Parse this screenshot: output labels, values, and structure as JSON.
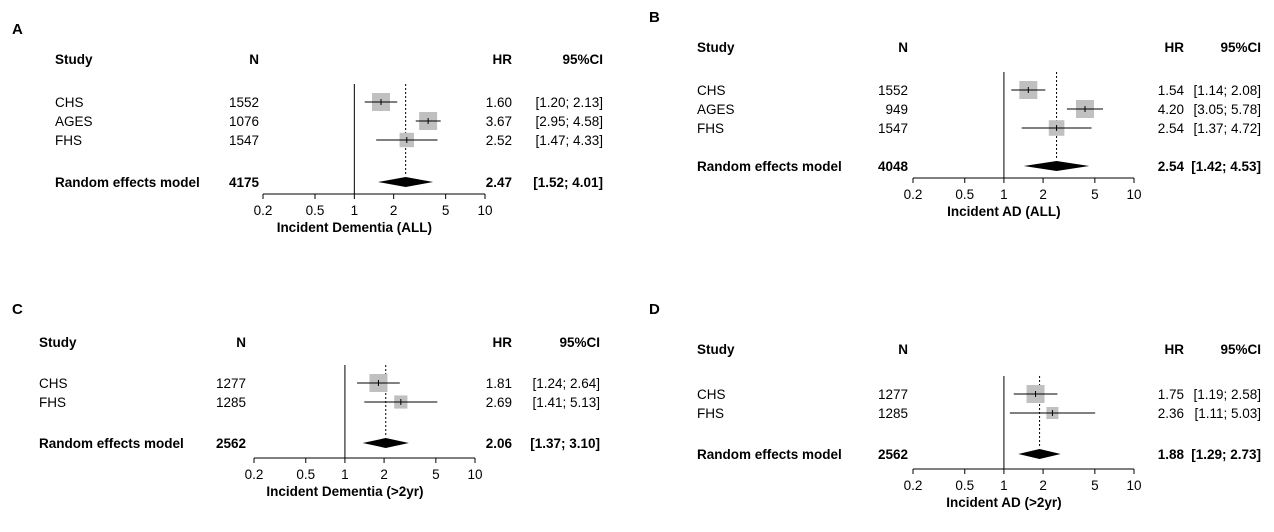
{
  "chart_data": [
    {
      "type": "forest",
      "panel_label": "A",
      "headers": {
        "study": "Study",
        "n": "N",
        "hr": "HR",
        "ci": "95%CI"
      },
      "xlabel": "Incident Dementia (ALL)",
      "xscale": "log",
      "xlim": [
        0.2,
        10
      ],
      "xticks": [
        "0.2",
        "0.5",
        "1",
        "2",
        "5",
        "10"
      ],
      "pooled_hr": 2.47,
      "studies": [
        {
          "study": "CHS",
          "n": "1552",
          "hr": 1.6,
          "lo": 1.2,
          "hi": 2.13,
          "hr_text": "1.60",
          "ci_text": "[1.20; 2.13]",
          "weight": 1.0
        },
        {
          "study": "AGES",
          "n": "1076",
          "hr": 3.67,
          "lo": 2.95,
          "hi": 4.58,
          "hr_text": "3.67",
          "ci_text": "[2.95; 4.58]",
          "weight": 1.0
        },
        {
          "study": "FHS",
          "n": "1547",
          "hr": 2.52,
          "lo": 1.47,
          "hi": 4.33,
          "hr_text": "2.52",
          "ci_text": "[1.47; 4.33]",
          "weight": 0.7
        }
      ],
      "pooled": {
        "label": "Random effects model",
        "n": "4175",
        "hr": 2.47,
        "lo": 1.52,
        "hi": 4.01,
        "hr_text": "2.47",
        "ci_text": "[1.52; 4.01]"
      }
    },
    {
      "type": "forest",
      "panel_label": "B",
      "headers": {
        "study": "Study",
        "n": "N",
        "hr": "HR",
        "ci": "95%CI"
      },
      "xlabel": "Incident AD (ALL)",
      "xscale": "log",
      "xlim": [
        0.2,
        10
      ],
      "xticks": [
        "0.2",
        "0.5",
        "1",
        "2",
        "5",
        "10"
      ],
      "pooled_hr": 2.54,
      "studies": [
        {
          "study": "CHS",
          "n": "1552",
          "hr": 1.54,
          "lo": 1.14,
          "hi": 2.08,
          "hr_text": "1.54",
          "ci_text": "[1.14; 2.08]",
          "weight": 1.0
        },
        {
          "study": "AGES",
          "n": "949",
          "hr": 4.2,
          "lo": 3.05,
          "hi": 5.78,
          "hr_text": "4.20",
          "ci_text": "[3.05; 5.78]",
          "weight": 1.0
        },
        {
          "study": "FHS",
          "n": "1547",
          "hr": 2.54,
          "lo": 1.37,
          "hi": 4.72,
          "hr_text": "2.54",
          "ci_text": "[1.37; 4.72]",
          "weight": 0.8
        }
      ],
      "pooled": {
        "label": "Random effects model",
        "n": "4048",
        "hr": 2.54,
        "lo": 1.42,
        "hi": 4.53,
        "hr_text": "2.54",
        "ci_text": "[1.42; 4.53]"
      }
    },
    {
      "type": "forest",
      "panel_label": "C",
      "headers": {
        "study": "Study",
        "n": "N",
        "hr": "HR",
        "ci": "95%CI"
      },
      "xlabel": "Incident Dementia (>2yr)",
      "xscale": "log",
      "xlim": [
        0.2,
        10
      ],
      "xticks": [
        "0.2",
        "0.5",
        "1",
        "2",
        "5",
        "10"
      ],
      "pooled_hr": 2.06,
      "studies": [
        {
          "study": "CHS",
          "n": "1277",
          "hr": 1.81,
          "lo": 1.24,
          "hi": 2.64,
          "hr_text": "1.81",
          "ci_text": "[1.24; 2.64]",
          "weight": 1.0
        },
        {
          "study": "FHS",
          "n": "1285",
          "hr": 2.69,
          "lo": 1.41,
          "hi": 5.13,
          "hr_text": "2.69",
          "ci_text": "[1.41; 5.13]",
          "weight": 0.6
        }
      ],
      "pooled": {
        "label": "Random effects model",
        "n": "2562",
        "hr": 2.06,
        "lo": 1.37,
        "hi": 3.1,
        "hr_text": "2.06",
        "ci_text": "[1.37; 3.10]"
      }
    },
    {
      "type": "forest",
      "panel_label": "D",
      "headers": {
        "study": "Study",
        "n": "N",
        "hr": "HR",
        "ci": "95%CI"
      },
      "xlabel": "Incident AD (>2yr)",
      "xscale": "log",
      "xlim": [
        0.2,
        10
      ],
      "xticks": [
        "0.2",
        "0.5",
        "1",
        "2",
        "5",
        "10"
      ],
      "pooled_hr": 1.88,
      "studies": [
        {
          "study": "CHS",
          "n": "1277",
          "hr": 1.75,
          "lo": 1.19,
          "hi": 2.58,
          "hr_text": "1.75",
          "ci_text": "[1.19; 2.58]",
          "weight": 1.0
        },
        {
          "study": "FHS",
          "n": "1285",
          "hr": 2.36,
          "lo": 1.11,
          "hi": 5.03,
          "hr_text": "2.36",
          "ci_text": "[1.11; 5.03]",
          "weight": 0.5
        }
      ],
      "pooled": {
        "label": "Random effects model",
        "n": "2562",
        "hr": 1.88,
        "lo": 1.29,
        "hi": 2.73,
        "hr_text": "1.88",
        "ci_text": "[1.29; 2.73]"
      }
    }
  ],
  "colors": {
    "square": "#c0c0c0",
    "line": "#000000",
    "text": "#000000"
  }
}
